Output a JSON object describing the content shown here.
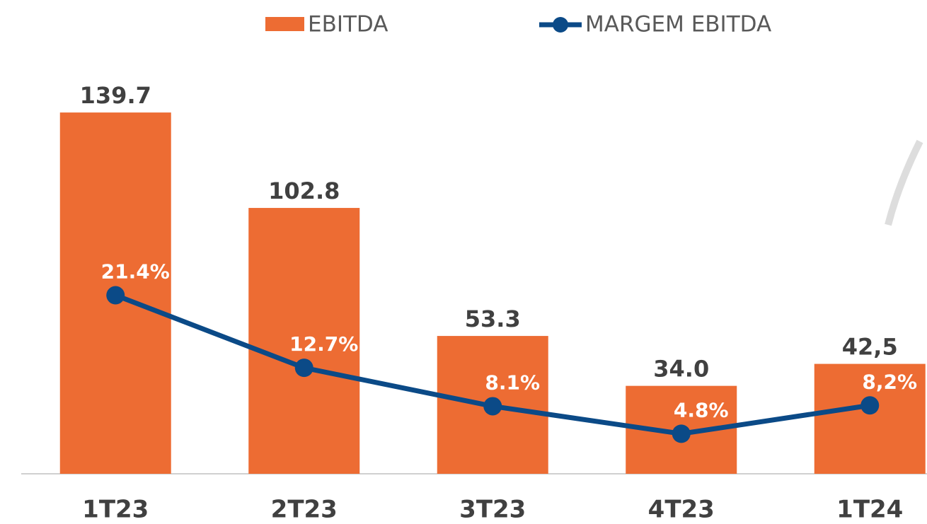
{
  "chart_data": {
    "type": "bar",
    "categories": [
      "1T23",
      "2T23",
      "3T23",
      "4T23",
      "1T24"
    ],
    "series": [
      {
        "name": "EBITDA",
        "type": "bar",
        "color": "#ED6C33",
        "values": [
          139.7,
          102.8,
          53.3,
          34.0,
          42.5
        ],
        "value_labels": [
          "139.7",
          "102.8",
          "53.3",
          "34.0",
          "42,5"
        ]
      },
      {
        "name": "MARGEM EBITDA",
        "type": "line",
        "axis": "y2",
        "color": "#0B4A87",
        "values": [
          21.4,
          12.7,
          8.1,
          4.8,
          8.2
        ],
        "value_labels": [
          "21.4%",
          "12.7%",
          "8.1%",
          "4.8%",
          "8,2%"
        ]
      }
    ],
    "ylim": [
      0,
      140
    ],
    "y2lim": [
      0,
      43.4
    ]
  }
}
